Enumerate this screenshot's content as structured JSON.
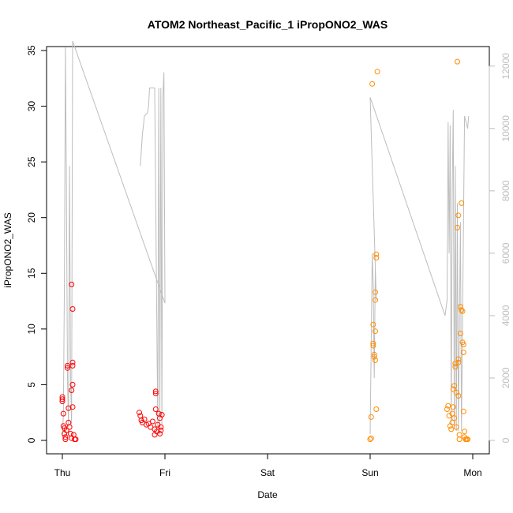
{
  "chart_data": {
    "type": "scatter",
    "title": "ATOM2 Northeast_Pacific_1 iPropONO2_WAS",
    "xlabel": "Date",
    "ylabel": "iPropONO2_WAS",
    "x_ticks": [
      "Thu",
      "Fri",
      "Sat",
      "Sun",
      "Mon"
    ],
    "xlim": [
      -0.03,
      4.1
    ],
    "ylim": [
      0,
      35
    ],
    "y_ticks": [
      0,
      5,
      10,
      15,
      20,
      25,
      30,
      35
    ],
    "y2lim": [
      0,
      12500
    ],
    "y2_ticks": [
      0,
      2000,
      4000,
      6000,
      8000,
      10000,
      12000
    ],
    "grid": false,
    "colors": {
      "series1": "#ff0000",
      "series2": "#ff8c00",
      "altitude_line": "#bdbdbd"
    },
    "series": [
      {
        "color": "#ff0000",
        "points": [
          [
            0.0,
            3.9
          ],
          [
            0.0,
            3.7
          ],
          [
            0.0,
            3.5
          ],
          [
            0.01,
            2.4
          ],
          [
            0.01,
            1.3
          ],
          [
            0.02,
            1.1
          ],
          [
            0.02,
            0.6
          ],
          [
            0.03,
            0.3
          ],
          [
            0.03,
            0.1
          ],
          [
            0.04,
            0.9
          ],
          [
            0.05,
            6.7
          ],
          [
            0.05,
            6.5
          ],
          [
            0.06,
            2.9
          ],
          [
            0.06,
            1.6
          ],
          [
            0.07,
            1.2
          ],
          [
            0.08,
            0.6
          ],
          [
            0.09,
            0.2
          ],
          [
            0.09,
            14.0
          ],
          [
            0.1,
            11.8
          ],
          [
            0.1,
            7.0
          ],
          [
            0.1,
            6.7
          ],
          [
            0.1,
            5.0
          ],
          [
            0.09,
            4.5
          ],
          [
            0.1,
            3.0
          ],
          [
            0.11,
            0.5
          ],
          [
            0.12,
            0.1
          ],
          [
            0.13,
            0.1
          ],
          [
            0.75,
            2.5
          ],
          [
            0.76,
            2.2
          ],
          [
            0.77,
            1.8
          ],
          [
            0.78,
            1.6
          ],
          [
            0.8,
            1.9
          ],
          [
            0.82,
            1.4
          ],
          [
            0.84,
            1.5
          ],
          [
            0.86,
            1.2
          ],
          [
            0.88,
            1.7
          ],
          [
            0.9,
            1.0
          ],
          [
            0.9,
            0.5
          ],
          [
            0.91,
            2.8
          ],
          [
            0.91,
            4.4
          ],
          [
            0.91,
            4.2
          ],
          [
            0.92,
            0.8
          ],
          [
            0.93,
            1.4
          ],
          [
            0.94,
            2.4
          ],
          [
            0.95,
            0.6
          ],
          [
            0.95,
            2.0
          ],
          [
            0.96,
            0.9
          ],
          [
            0.96,
            1.2
          ],
          [
            0.97,
            2.3
          ]
        ]
      },
      {
        "color": "#ff8c00",
        "points": [
          [
            3.0,
            0.1
          ],
          [
            3.01,
            0.2
          ],
          [
            3.01,
            2.1
          ],
          [
            3.02,
            32.0
          ],
          [
            3.03,
            10.4
          ],
          [
            3.03,
            8.7
          ],
          [
            3.03,
            8.5
          ],
          [
            3.04,
            7.7
          ],
          [
            3.04,
            7.5
          ],
          [
            3.05,
            7.2
          ],
          [
            3.05,
            13.3
          ],
          [
            3.05,
            12.6
          ],
          [
            3.05,
            9.8
          ],
          [
            3.06,
            16.7
          ],
          [
            3.06,
            16.4
          ],
          [
            3.06,
            2.8
          ],
          [
            3.07,
            33.1
          ],
          [
            3.75,
            2.8
          ],
          [
            3.76,
            3.1
          ],
          [
            3.77,
            2.2
          ],
          [
            3.78,
            1.3
          ],
          [
            3.79,
            1.0
          ],
          [
            3.8,
            2.4
          ],
          [
            3.8,
            1.6
          ],
          [
            3.81,
            3.0
          ],
          [
            3.81,
            4.6
          ],
          [
            3.82,
            2.0
          ],
          [
            3.82,
            4.9
          ],
          [
            3.83,
            6.6
          ],
          [
            3.83,
            6.9
          ],
          [
            3.84,
            4.3
          ],
          [
            3.84,
            1.2
          ],
          [
            3.85,
            34.0
          ],
          [
            3.85,
            19.1
          ],
          [
            3.86,
            20.2
          ],
          [
            3.86,
            7.3
          ],
          [
            3.86,
            7.0
          ],
          [
            3.86,
            4.0
          ],
          [
            3.87,
            0.5
          ],
          [
            3.87,
            0.1
          ],
          [
            3.88,
            12.0
          ],
          [
            3.88,
            9.6
          ],
          [
            3.89,
            21.3
          ],
          [
            3.89,
            11.7
          ],
          [
            3.9,
            11.6
          ],
          [
            3.9,
            8.8
          ],
          [
            3.91,
            8.6
          ],
          [
            3.91,
            7.9
          ],
          [
            3.91,
            2.6
          ],
          [
            3.92,
            0.8
          ],
          [
            3.92,
            0.3
          ],
          [
            3.93,
            0.1
          ],
          [
            3.94,
            0.1
          ],
          [
            3.95,
            0.1
          ]
        ]
      }
    ],
    "altitude_line": [
      [
        [
          0.0,
          120
        ],
        [
          0.01,
          800
        ],
        [
          0.02,
          5000
        ],
        [
          0.03,
          12600
        ],
        [
          0.04,
          8000
        ],
        [
          0.05,
          2000
        ],
        [
          0.06,
          400
        ],
        [
          0.07,
          8800
        ],
        [
          0.08,
          2000
        ],
        [
          0.09,
          500
        ],
        [
          0.1,
          12800
        ],
        [
          1.0,
          4400
        ],
        [
          0.99,
          11800
        ],
        [
          0.98,
          11000
        ],
        [
          0.97,
          500
        ],
        [
          0.96,
          11300
        ],
        [
          0.95,
          200
        ],
        [
          0.94,
          11300
        ],
        [
          0.93,
          400
        ],
        [
          0.9,
          11300
        ],
        [
          0.85,
          11300
        ],
        [
          0.84,
          10700
        ],
        [
          0.83,
          10500
        ],
        [
          0.8,
          10400
        ],
        [
          0.78,
          9800
        ],
        [
          0.76,
          8800
        ]
      ],
      [
        [
          3.0,
          200
        ],
        [
          3.01,
          3000
        ],
        [
          3.02,
          6000
        ],
        [
          3.03,
          5000
        ],
        [
          3.04,
          2000
        ],
        [
          3.05,
          5500
        ],
        [
          3.06,
          4500
        ],
        [
          3.0,
          11000
        ],
        [
          3.73,
          4000
        ],
        [
          3.75,
          4500
        ],
        [
          3.76,
          10200
        ],
        [
          3.77,
          6000
        ],
        [
          3.78,
          10100
        ],
        [
          3.79,
          500
        ],
        [
          3.8,
          8000
        ],
        [
          3.81,
          10600
        ],
        [
          3.82,
          400
        ],
        [
          3.83,
          8800
        ],
        [
          3.84,
          300
        ],
        [
          3.85,
          7600
        ],
        [
          3.86,
          300
        ],
        [
          3.88,
          7000
        ],
        [
          3.89,
          300
        ],
        [
          3.92,
          10400
        ],
        [
          3.95,
          10000
        ],
        [
          3.96,
          10400
        ]
      ]
    ]
  }
}
